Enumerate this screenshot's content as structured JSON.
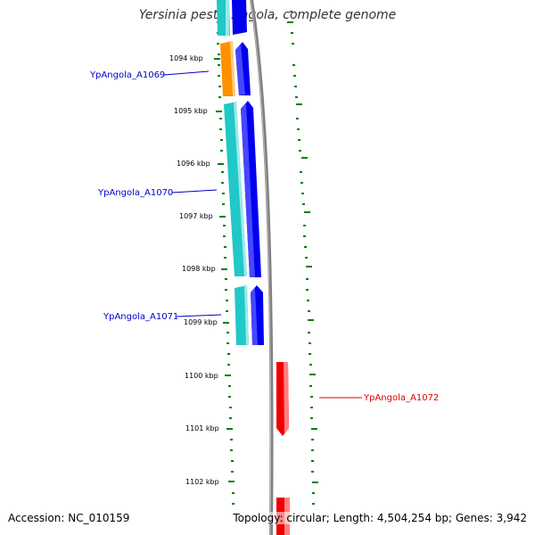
{
  "title": "Yersinia pestis Angola, complete genome",
  "footer": {
    "accession": "Accession: NC_010159",
    "summary": "Topology: circular; Length: 4,504,254 bp; Genes: 3,942"
  },
  "scale_labels": [
    "1094 kbp",
    "1095 kbp",
    "1096 kbp",
    "1097 kbp",
    "1098 kbp",
    "1099 kbp",
    "1100 kbp",
    "1101 kbp",
    "1102 kbp"
  ],
  "gene_labels": [
    "YpAngola_A1069",
    "YpAngola_A1070",
    "YpAngola_A1071",
    "YpAngola_A1072"
  ],
  "colors": {
    "background": "#ffffff",
    "backbone": "#808080",
    "tick_marks": "#008000",
    "cds_forward": "#0000ee",
    "cds_reverse": "#ee0000",
    "orf_cyan": "#20c8c8",
    "orf_orange": "#ff9000",
    "label_blue": "#0000cc",
    "label_red": "#dd0000"
  },
  "legend_items": [
    "cds-forward",
    "cds-reverse",
    "orf-cyan",
    "orf-orange"
  ],
  "icons": []
}
